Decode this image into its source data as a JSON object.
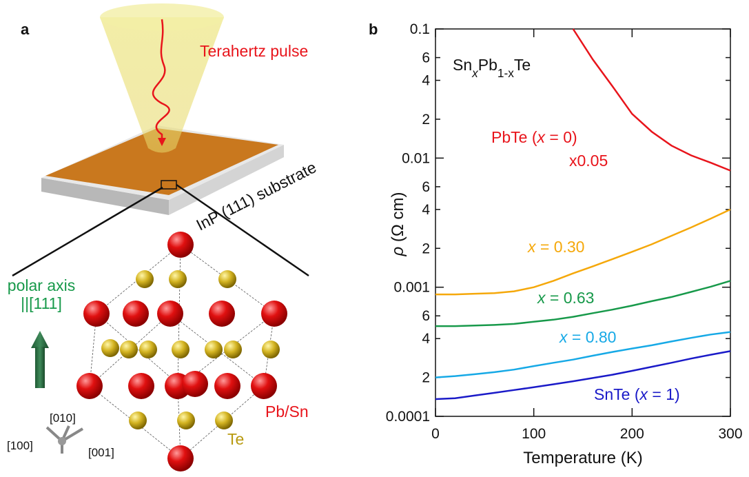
{
  "panel_a": {
    "letter": "a",
    "pulse_label": "Terahertz pulse",
    "substrate_label": "InP (111) substrate",
    "polar_axis": [
      "polar axis",
      "||[111]"
    ],
    "atom_labels": [
      "Pb/Sn",
      "Te"
    ],
    "directions": [
      "[010]",
      "[100]",
      "[001]"
    ]
  },
  "chart_data": {
    "type": "line",
    "letter": "b",
    "title": [
      "Sn",
      "x",
      "Pb",
      "1-x",
      "Te"
    ],
    "x_label": "Temperature (K)",
    "y_label": [
      "ρ",
      " (Ω cm)"
    ],
    "log_y": true,
    "xlim": [
      0,
      300
    ],
    "xticks": [
      0,
      100,
      200,
      300
    ],
    "ylim": [
      0.0001,
      0.1
    ],
    "yticks": [
      0.0001,
      {
        "value": 0.0002,
        "label": "2"
      },
      {
        "value": 0.0004,
        "label": "4"
      },
      {
        "value": 0.0006,
        "label": "6"
      },
      0.001,
      {
        "value": 0.002,
        "label": "2"
      },
      {
        "value": 0.004,
        "label": "4"
      },
      {
        "value": 0.006,
        "label": "6"
      },
      0.01,
      {
        "value": 0.02,
        "label": "2"
      },
      {
        "value": 0.04,
        "label": "4"
      },
      {
        "value": 0.06,
        "label": "6"
      },
      0.1
    ],
    "x": [
      0,
      20,
      40,
      60,
      80,
      100,
      120,
      140,
      160,
      180,
      200,
      220,
      240,
      260,
      280,
      300
    ],
    "series": [
      {
        "label": [
          "PbTe (",
          "x",
          " = 0)"
        ],
        "scale_label": "x0.05",
        "color": "#e8141b",
        "values": [
          null,
          null,
          null,
          null,
          null,
          null,
          null,
          0.1,
          0.058,
          0.036,
          0.022,
          0.016,
          0.0125,
          0.0105,
          0.0092,
          0.008
        ]
      },
      {
        "label": [
          "x",
          " = 0.30"
        ],
        "color": "#f5a80a",
        "values": [
          0.00088,
          0.00088,
          0.00089,
          0.0009,
          0.00093,
          0.001,
          0.00112,
          0.00128,
          0.00145,
          0.00165,
          0.00188,
          0.00215,
          0.0025,
          0.0029,
          0.0034,
          0.004
        ]
      },
      {
        "label": [
          "x",
          " = 0.63"
        ],
        "color": "#17994a",
        "values": [
          0.0005,
          0.0005,
          0.000505,
          0.00051,
          0.00052,
          0.00054,
          0.00056,
          0.00059,
          0.00063,
          0.00067,
          0.00072,
          0.00078,
          0.00084,
          0.00092,
          0.00101,
          0.00112
        ]
      },
      {
        "label": [
          "x",
          " = 0.80"
        ],
        "color": "#16a9e6",
        "values": [
          0.0002,
          0.000205,
          0.000212,
          0.00022,
          0.00023,
          0.000245,
          0.00026,
          0.000275,
          0.000295,
          0.000315,
          0.000335,
          0.000355,
          0.00038,
          0.000405,
          0.00043,
          0.00045
        ]
      },
      {
        "label": [
          "SnTe (",
          "x",
          " = 1)"
        ],
        "color": "#1a1ac8",
        "values": [
          0.000136,
          0.000138,
          0.000145,
          0.000152,
          0.00016,
          0.000168,
          0.000177,
          0.000187,
          0.000198,
          0.00021,
          0.000225,
          0.000242,
          0.00026,
          0.00028,
          0.0003,
          0.00032
        ]
      }
    ]
  }
}
